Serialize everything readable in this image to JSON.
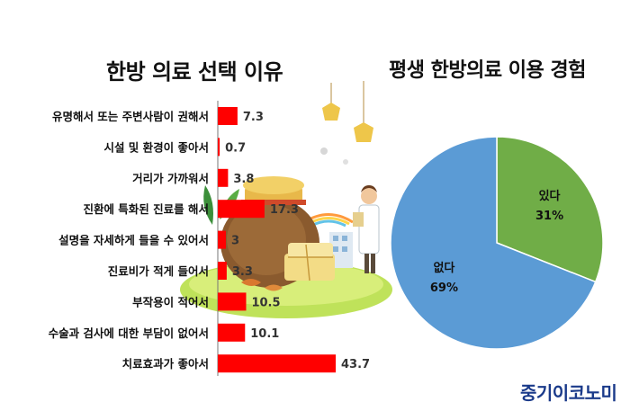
{
  "chart_data": [
    {
      "type": "bar",
      "orientation": "horizontal",
      "title": "한방 의료 선택 이유",
      "categories": [
        "유명해서 또는 주변사람이 권해서",
        "시설 및 환경이 좋아서",
        "거리가 가까워서",
        "진환에 특화된 진료를 해서",
        "설명을 자세하게 들을 수 있어서",
        "진료비가 적게 들어서",
        "부작용이 적어서",
        "수술과 검사에 대한 부담이 없어서",
        "치료효과가 좋아서"
      ],
      "values": [
        7.3,
        0.7,
        3.8,
        17.3,
        3,
        3.3,
        10.5,
        10.1,
        43.7
      ],
      "value_labels": [
        "7.3",
        "0.7",
        "3.8",
        "17.3",
        "3",
        "3.3",
        "10.5",
        "10.1",
        "43.7"
      ],
      "xlim": [
        0,
        43.7
      ],
      "bar_color": "#ff0000"
    },
    {
      "type": "pie",
      "title": "평생 한방의료 이용 경험",
      "slices": [
        {
          "label": "있다",
          "value": 31,
          "value_label": "31%",
          "color": "#70ad47"
        },
        {
          "label": "없다",
          "value": 69,
          "value_label": "69%",
          "color": "#5b9bd5"
        }
      ]
    }
  ],
  "brand": "중기이코노미"
}
